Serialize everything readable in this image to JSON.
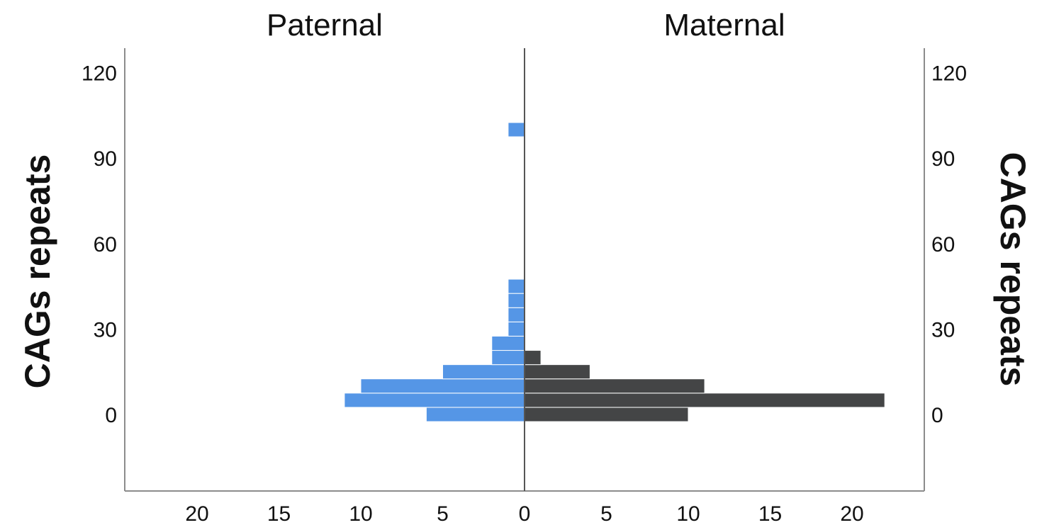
{
  "chart_data": {
    "type": "bar",
    "orientation": "horizontal",
    "layout": "back-to-back population pyramid",
    "left_panel_title": "Paternal",
    "right_panel_title": "Maternal",
    "ylabel_left": "CAGs repeats",
    "ylabel_right": "CAGs repeats",
    "xlabel": "",
    "y_ticks": [
      0,
      30,
      60,
      90,
      120
    ],
    "x_ticks": [
      20,
      15,
      10,
      5,
      0,
      5,
      10,
      15,
      20
    ],
    "ylim": [
      -26,
      130
    ],
    "xlim": [
      0,
      24
    ],
    "bin_width": 5,
    "series": [
      {
        "name": "Paternal",
        "side": "left",
        "color": "#5596e6",
        "bins": [
          {
            "y_from": -2.5,
            "y_to": 2.5,
            "count": 6
          },
          {
            "y_from": 2.5,
            "y_to": 7.5,
            "count": 11
          },
          {
            "y_from": 7.5,
            "y_to": 12.5,
            "count": 10
          },
          {
            "y_from": 12.5,
            "y_to": 17.5,
            "count": 5
          },
          {
            "y_from": 17.5,
            "y_to": 22.5,
            "count": 2
          },
          {
            "y_from": 22.5,
            "y_to": 27.5,
            "count": 2
          },
          {
            "y_from": 27.5,
            "y_to": 32.5,
            "count": 1
          },
          {
            "y_from": 32.5,
            "y_to": 37.5,
            "count": 1
          },
          {
            "y_from": 37.5,
            "y_to": 42.5,
            "count": 1
          },
          {
            "y_from": 42.5,
            "y_to": 47.5,
            "count": 1
          },
          {
            "y_from": 97.5,
            "y_to": 102.5,
            "count": 1
          }
        ]
      },
      {
        "name": "Maternal",
        "side": "right",
        "color": "#444546",
        "bins": [
          {
            "y_from": -2.5,
            "y_to": 2.5,
            "count": 10
          },
          {
            "y_from": 2.5,
            "y_to": 7.5,
            "count": 22
          },
          {
            "y_from": 7.5,
            "y_to": 12.5,
            "count": 11
          },
          {
            "y_from": 12.5,
            "y_to": 17.5,
            "count": 4
          },
          {
            "y_from": 17.5,
            "y_to": 22.5,
            "count": 1
          }
        ]
      }
    ],
    "grid": false,
    "legend": "none"
  }
}
